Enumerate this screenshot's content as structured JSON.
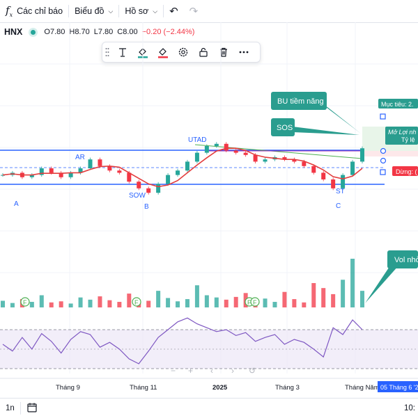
{
  "toolbar": {
    "indicators_label": "Các chỉ báo",
    "chart_label": "Biểu đồ",
    "profile_label": "Hồ sơ"
  },
  "legend": {
    "symbol": "HNX",
    "open": "O7.80",
    "high": "H8.70",
    "low": "L7.80",
    "close": "C8.00",
    "change": "−0.20 (−2.44%)"
  },
  "drawing_toolbar": {
    "icons": [
      "grip-icon",
      "text-icon",
      "fill-color-icon",
      "line-color-icon",
      "settings-icon",
      "lock-icon",
      "delete-icon",
      "more-icon"
    ]
  },
  "annotations": {
    "bu": "BU tiềm năng",
    "sos": "SOS",
    "vol": "Vol nhỏ",
    "target": "Mục tiêu: 2.",
    "open_profit": "Mở Lợi nh",
    "ratio": "Tỷ lệ",
    "stop": "Dừng: (",
    "utad": "UTAD",
    "ar": "AR",
    "sow": "SOW",
    "st": "ST",
    "a": "A",
    "b": "B",
    "c": "C"
  },
  "xaxis": {
    "labels": [
      "Tháng 9",
      "Tháng 11",
      "2025",
      "Tháng 3",
      "Tháng Năm"
    ],
    "crosshair_date": "05 Tháng 6 '2"
  },
  "bottom": {
    "interval": "1n",
    "time": "10:"
  },
  "colors": {
    "up": "#26a69a",
    "down": "#f23645",
    "ma": "#e33d3d",
    "rsi": "#7e57c2",
    "blue": "#2962ff",
    "teal": "#2a9d8f"
  },
  "chart_data": {
    "type": "line",
    "series": [
      {
        "name": "",
        "values": [
          7.6,
          7.7,
          7.5,
          7.6,
          7.9,
          7.7,
          7.5,
          7.7,
          7.9,
          8.3,
          8.0,
          7.8,
          7.7,
          7.3,
          7.0,
          6.8,
          7.2,
          7.6,
          7.8,
          8.2,
          8.6,
          8.9,
          9.0,
          8.7,
          8.6,
          8.5,
          8.2,
          8.3,
          8.4,
          8.3,
          8.2,
          8.0,
          7.7,
          7.4,
          7.0,
          7.6,
          8.2,
          8.8
        ]
      }
    ],
    "rsi": [
      45,
      38,
      52,
      40,
      56,
      48,
      36,
      50,
      58,
      55,
      42,
      47,
      40,
      30,
      25,
      38,
      52,
      60,
      68,
      72,
      66,
      62,
      58,
      60,
      54,
      57,
      48,
      52,
      55,
      45,
      50,
      47,
      40,
      32,
      62,
      55,
      70,
      60
    ],
    "volume": [
      12,
      8,
      15,
      10,
      22,
      9,
      11,
      7,
      18,
      14,
      20,
      13,
      10,
      25,
      9,
      12,
      30,
      17,
      11,
      15,
      40,
      22,
      18,
      14,
      19,
      26,
      12,
      16,
      10,
      28,
      15,
      9,
      44,
      35,
      24,
      50,
      88,
      30
    ],
    "vol_marks": [
      "F",
      "F",
      "F",
      "F"
    ]
  }
}
